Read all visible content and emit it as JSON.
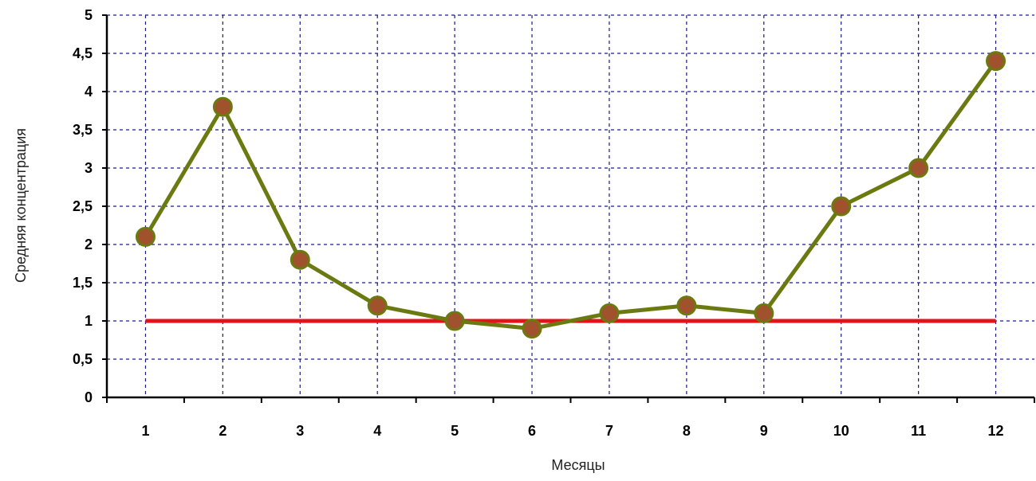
{
  "chart_data": {
    "type": "line",
    "title": "",
    "xlabel": "Месяцы",
    "ylabel": "Средняя концентрация",
    "categories": [
      "1",
      "2",
      "3",
      "4",
      "5",
      "6",
      "7",
      "8",
      "9",
      "10",
      "11",
      "12"
    ],
    "y_ticks": [
      "0",
      "0,5",
      "1",
      "1,5",
      "2",
      "2,5",
      "3",
      "3,5",
      "4",
      "4,5",
      "5"
    ],
    "ylim": [
      0,
      5
    ],
    "grid": true,
    "legend": "none",
    "series": [
      {
        "values": [
          2.1,
          3.8,
          1.8,
          1.2,
          1.0,
          0.9,
          1.1,
          1.2,
          1.1,
          2.5,
          3.0,
          4.4
        ],
        "color": "#6b7a10",
        "marker_color": "#a0522d"
      },
      {
        "values": [
          1,
          1,
          1,
          1,
          1,
          1,
          1,
          1,
          1,
          1,
          1,
          1
        ],
        "color": "#e3121b"
      }
    ],
    "grid_color": "#1a1a8c"
  }
}
